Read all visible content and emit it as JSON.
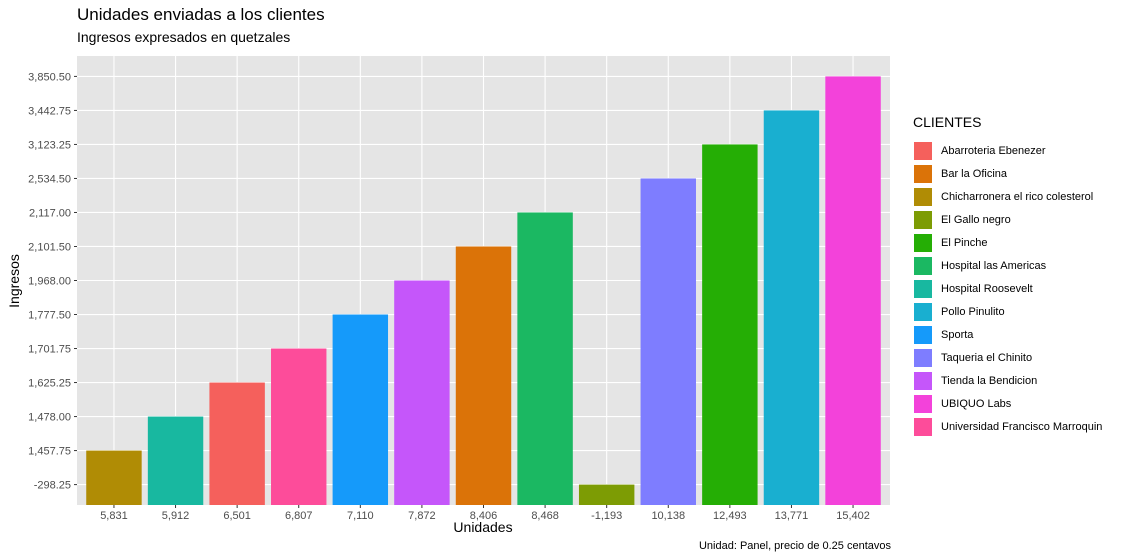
{
  "chart_data": {
    "type": "bar",
    "title": "Unidades enviadas a los clientes",
    "subtitle": "Ingresos expresados en quetzales",
    "xlabel": "Unidades",
    "ylabel": "Ingresos",
    "caption": "Unidad: Panel, precio de 0.25 centavos",
    "legend_title": "CLIENTES",
    "legend_position": "right",
    "grid": true,
    "y_tick_labels": [
      "-298.25",
      "1,457.75",
      "1,478.00",
      "1,625.25",
      "1,701.75",
      "1,777.50",
      "1,968.00",
      "2,101.50",
      "2,117.00",
      "2,534.50",
      "3,123.25",
      "3,442.75",
      "3,850.50"
    ],
    "categories": [
      "5,831",
      "5,912",
      "6,501",
      "6,807",
      "7,110",
      "7,872",
      "8,406",
      "8,468",
      "-1,193",
      "10,138",
      "12,493",
      "13,771",
      "15,402"
    ],
    "values": [
      1457.75,
      1478.0,
      1625.25,
      1701.75,
      1777.5,
      1968.0,
      2101.5,
      2117.0,
      -298.25,
      2534.5,
      3123.25,
      3442.75,
      3850.5
    ],
    "bar_clients": [
      "Chicharronera el rico colesterol",
      "Hospital Roosevelt",
      "Abarroteria Ebenezer",
      "Universidad Francisco Marroquin",
      "Sporta",
      "Tienda la Bendicion",
      "Bar la Oficina",
      "Hospital las Americas",
      "El Gallo negro",
      "Taqueria el Chinito",
      "El Pinche",
      "Pollo Pinulito",
      "UBIQUO Labs"
    ],
    "legend": [
      {
        "name": "Abarroteria Ebenezer",
        "color": "#F8766D"
      },
      {
        "name": "Bar la Oficina",
        "color": "#DE8C00"
      },
      {
        "name": "Chicharronera el rico colesterol",
        "color": "#B79F00"
      },
      {
        "name": "El Gallo negro",
        "color": "#7CAE00"
      },
      {
        "name": "El Pinche",
        "color": "#00BA38"
      },
      {
        "name": "Hospital las Americas",
        "color": "#00C08B"
      },
      {
        "name": "Hospital Roosevelt",
        "color": "#00BFC4"
      },
      {
        "name": "Pollo Pinulito",
        "color": "#00B4F0"
      },
      {
        "name": "Sporta",
        "color": "#619CFF"
      },
      {
        "name": "Taqueria el Chinito",
        "color": "#C77CFF"
      },
      {
        "name": "Tienda la Bendicion",
        "color": "#F564E3"
      },
      {
        "name": "UBIQUO Labs",
        "color": "#FF64B0"
      },
      {
        "name": "Universidad Francisco Marroquin",
        "color": "#FF4E9B"
      }
    ],
    "render_colors": {
      "Abarroteria Ebenezer": "#F5605C",
      "Bar la Oficina": "#DB7308",
      "Chicharronera el rico colesterol": "#B08C05",
      "El Gallo negro": "#7D9C04",
      "El Pinche": "#25AE05",
      "Hospital las Americas": "#1BB862",
      "Hospital Roosevelt": "#18B8A0",
      "Pollo Pinulito": "#19AFD0",
      "Sporta": "#159AFA",
      "Taqueria el Chinito": "#7E7DFF",
      "Tienda la Bendicion": "#C556FA",
      "UBIQUO Labs": "#F342DA",
      "Universidad Francisco Marroquin": "#FD4C9A"
    },
    "panel_background": "#E5E5E5",
    "grid_color": "#FFFFFF",
    "tick_text_color": "#4D4D4D"
  }
}
